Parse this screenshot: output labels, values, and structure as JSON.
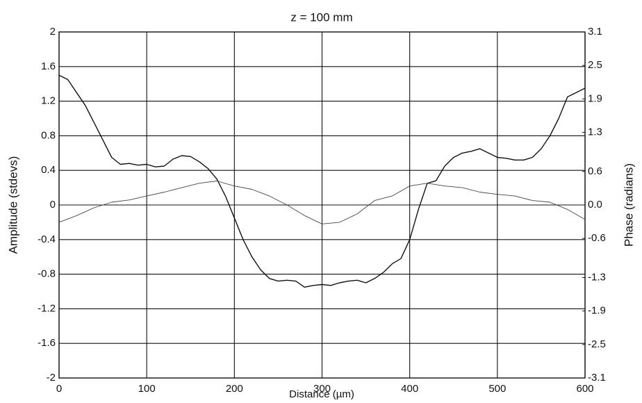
{
  "chart_data": {
    "type": "line",
    "title": "z = 100 mm",
    "xlabel": "Distance (µm)",
    "ylabel": "Amplitude (stdevs)",
    "y2label": "Phase (radians)",
    "xlim": [
      0,
      600
    ],
    "xticks": [
      0,
      100,
      200,
      300,
      400,
      500,
      600
    ],
    "ylim": [
      -2,
      2
    ],
    "yticks": [
      2,
      1.6,
      1.2,
      0.8,
      0.4,
      0,
      -0.4,
      -0.8,
      -1.2,
      -1.6,
      -2
    ],
    "y2lim": [
      -3.1,
      3.1
    ],
    "y2ticks": [
      3.1,
      2.5,
      1.9,
      1.3,
      0.6,
      {
        "value": 0,
        "label": "0.0"
      },
      -0.6,
      -1.3,
      -1.9,
      -2.5,
      -3.1
    ],
    "grid": true,
    "series": [
      {
        "color": "#111111",
        "width": 1.4,
        "x": [
          0,
          10,
          20,
          30,
          40,
          50,
          60,
          70,
          80,
          90,
          100,
          110,
          120,
          130,
          140,
          150,
          160,
          170,
          180,
          190,
          200,
          210,
          220,
          230,
          240,
          250,
          260,
          270,
          280,
          290,
          300,
          310,
          320,
          330,
          340,
          350,
          360,
          370,
          380,
          390,
          400,
          410,
          420,
          430,
          440,
          450,
          460,
          470,
          480,
          490,
          500,
          510,
          520,
          530,
          540,
          550,
          560,
          570,
          580,
          590,
          600
        ],
        "values": [
          1.5,
          1.45,
          1.3,
          1.15,
          0.95,
          0.75,
          0.55,
          0.47,
          0.48,
          0.46,
          0.47,
          0.44,
          0.45,
          0.53,
          0.57,
          0.56,
          0.5,
          0.42,
          0.3,
          0.1,
          -0.15,
          -0.4,
          -0.6,
          -0.75,
          -0.85,
          -0.88,
          -0.87,
          -0.88,
          -0.95,
          -0.93,
          -0.92,
          -0.93,
          -0.9,
          -0.88,
          -0.87,
          -0.9,
          -0.85,
          -0.78,
          -0.68,
          -0.62,
          -0.4,
          -0.05,
          0.25,
          0.28,
          0.45,
          0.55,
          0.6,
          0.62,
          0.65,
          0.6,
          0.55,
          0.54,
          0.52,
          0.52,
          0.55,
          0.65,
          0.8,
          1.0,
          1.25,
          1.3,
          1.35
        ]
      },
      {
        "color": "#444444",
        "width": 0.9,
        "axis": "y2",
        "x": [
          0,
          20,
          40,
          60,
          80,
          100,
          120,
          140,
          160,
          180,
          200,
          220,
          240,
          260,
          280,
          300,
          320,
          340,
          360,
          380,
          400,
          420,
          440,
          460,
          480,
          500,
          520,
          540,
          560,
          580,
          600
        ],
        "values": [
          -0.31,
          -0.19,
          -0.05,
          0.05,
          0.09,
          0.16,
          0.23,
          0.31,
          0.39,
          0.43,
          0.34,
          0.28,
          0.16,
          0,
          -0.19,
          -0.34,
          -0.31,
          -0.16,
          0.08,
          0.16,
          0.34,
          0.39,
          0.34,
          0.31,
          0.23,
          0.19,
          0.16,
          0.08,
          0.05,
          -0.08,
          -0.26
        ]
      }
    ]
  }
}
